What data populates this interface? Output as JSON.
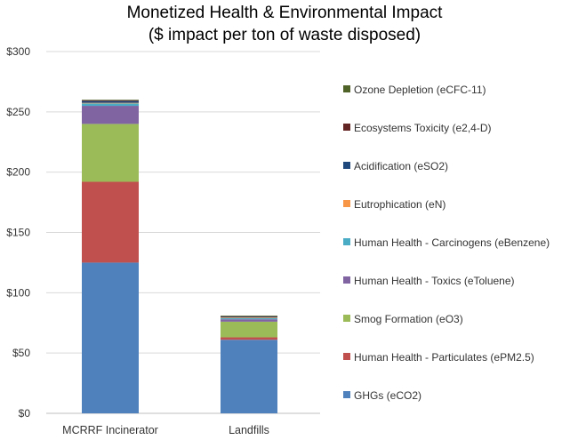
{
  "chart_data": {
    "type": "bar",
    "stacked": true,
    "title": "Monetized Health & Environmental Impact",
    "subtitle": "($ impact per ton of waste disposed)",
    "categories": [
      "MCRRF Incinerator",
      "Landfills"
    ],
    "ylim": [
      0,
      300
    ],
    "yticks": [
      "$0",
      "$50",
      "$100",
      "$150",
      "$200",
      "$250",
      "$300"
    ],
    "ytick_values": [
      0,
      50,
      100,
      150,
      200,
      250,
      300
    ],
    "grid": true,
    "legend_position": "right",
    "series": [
      {
        "name": "GHGs (eCO2)",
        "color": "#4f81bd",
        "values": [
          125,
          61
        ]
      },
      {
        "name": "Human Health - Particulates (ePM2.5)",
        "color": "#c0504d",
        "values": [
          67,
          2
        ]
      },
      {
        "name": "Smog Formation (eO3)",
        "color": "#9bbb59",
        "values": [
          48,
          13
        ]
      },
      {
        "name": "Human Health - Toxics (eToluene)",
        "color": "#8064a2",
        "values": [
          15,
          2
        ]
      },
      {
        "name": "Human Health - Carcinogens (eBenzene)",
        "color": "#4bacc6",
        "values": [
          2,
          1
        ]
      },
      {
        "name": "Eutrophication (eN)",
        "color": "#f79646",
        "values": [
          0.5,
          0.5
        ]
      },
      {
        "name": "Acidification (eSO2)",
        "color": "#1f497d",
        "values": [
          1.5,
          0.5
        ]
      },
      {
        "name": "Ecosystems Toxicity (e2,4-D)",
        "color": "#632523",
        "values": [
          0.5,
          0.5
        ]
      },
      {
        "name": "Ozone Depletion (eCFC-11)",
        "color": "#4f6228",
        "values": [
          0.5,
          0.5
        ]
      }
    ]
  }
}
